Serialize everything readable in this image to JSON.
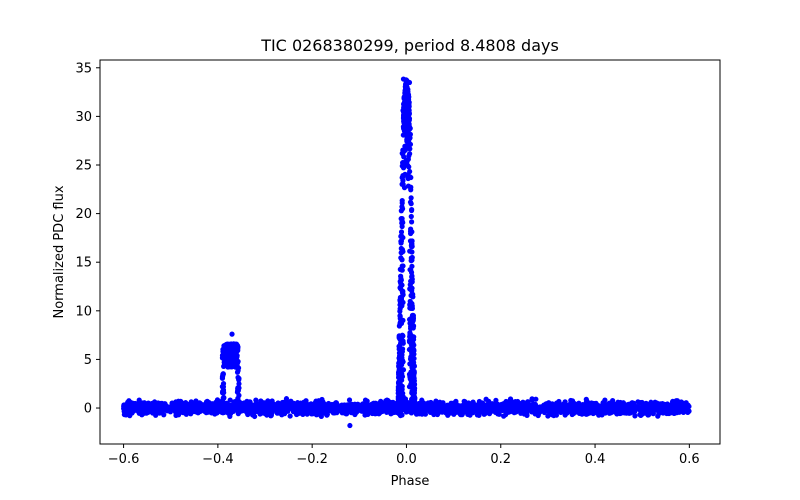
{
  "chart_data": {
    "type": "scatter",
    "title": "TIC 0268380299, period 8.4808 days",
    "xlabel": "Phase",
    "ylabel": "Normalized PDC flux",
    "xlim": [
      -0.65,
      0.665
    ],
    "ylim": [
      -3.7,
      35.8
    ],
    "xticks": [
      -0.6,
      -0.4,
      -0.2,
      0.0,
      0.2,
      0.4,
      0.6
    ],
    "xtick_labels": [
      "−0.6",
      "−0.4",
      "−0.2",
      "0.0",
      "0.2",
      "0.4",
      "0.6"
    ],
    "yticks": [
      0,
      5,
      10,
      15,
      20,
      25,
      30,
      35
    ],
    "ytick_labels": [
      "0",
      "5",
      "10",
      "15",
      "20",
      "25",
      "30",
      "35"
    ],
    "marker_color": "#0000ff",
    "grid": false,
    "series": [
      {
        "name": "flux",
        "x_range": [
          -0.6,
          0.6
        ],
        "baseline": 0.0,
        "noise_amplitude": 0.6,
        "secondary_eclipse_center": -0.373,
        "secondary_eclipse_halfwidth": 0.018,
        "secondary_eclipse_peak": 6.5,
        "secondary_eclipse_max_outlier": 7.6,
        "primary_eclipse_center": 0.0,
        "primary_eclipse_halfwidth": 0.018,
        "primary_eclipse_peak": 34.2,
        "primary_eclipse_dip": 26.5,
        "min_outlier": -1.8
      }
    ]
  }
}
